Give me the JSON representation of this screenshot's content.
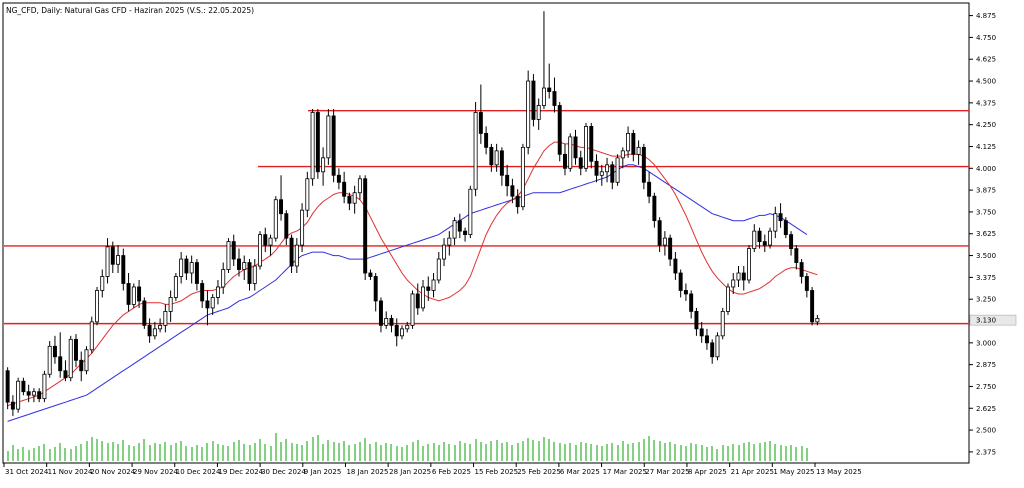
{
  "chart_data": {
    "type": "candlestick",
    "title": "NG_CFD, Daily: Natural Gas CFD - Haziran 2025 (V.S.: 22.05.2025)",
    "y_ticks": [
      "4.875",
      "4.750",
      "4.625",
      "4.500",
      "4.375",
      "4.250",
      "4.125",
      "4.000",
      "3.875",
      "3.750",
      "3.625",
      "3.500",
      "3.375",
      "3.250",
      "3.125",
      "3.000",
      "2.875",
      "2.750",
      "2.625",
      "2.500",
      "2.375"
    ],
    "y_tick_values": [
      4.875,
      4.75,
      4.625,
      4.5,
      4.375,
      4.25,
      4.125,
      4.0,
      3.875,
      3.75,
      3.625,
      3.5,
      3.375,
      3.25,
      3.125,
      3.0,
      2.875,
      2.75,
      2.625,
      2.5,
      2.375
    ],
    "x_ticks": [
      "31 Oct 2024",
      "11 Nov 2024",
      "20 Nov 2024",
      "29 Nov 2024",
      "10 Dec 2024",
      "19 Dec 2024",
      "30 Dec 2024",
      "9 Jan 2025",
      "18 Jan 2025",
      "28 Jan 2025",
      "6 Feb 2025",
      "15 Feb 2025",
      "25 Feb 2025",
      "6 Mar 2025",
      "17 Mar 2025",
      "27 Mar 2025",
      "8 Apr 2025",
      "21 Apr 2025",
      "1 May 2025",
      "13 May 2025"
    ],
    "ylim": [
      2.34,
      4.93
    ],
    "current_price": "3.130",
    "current_value": 3.13,
    "horizontal_levels": [
      4.33,
      4.01,
      3.555,
      3.11
    ],
    "colors": {
      "up": "#ffffff",
      "down": "#000000",
      "outline": "#000000",
      "level": "#e02020",
      "ma_short": "#e03030",
      "ma_long": "#3030e0",
      "volume": "#30b030",
      "axis": "#000000",
      "text": "#000000"
    },
    "candles": [
      [
        2.84,
        2.86,
        2.62,
        2.66
      ],
      [
        2.66,
        2.7,
        2.58,
        2.62
      ],
      [
        2.62,
        2.8,
        2.6,
        2.78
      ],
      [
        2.78,
        2.8,
        2.7,
        2.72
      ],
      [
        2.72,
        2.76,
        2.66,
        2.7
      ],
      [
        2.7,
        2.74,
        2.66,
        2.72
      ],
      [
        2.72,
        2.74,
        2.66,
        2.68
      ],
      [
        2.68,
        2.84,
        2.66,
        2.82
      ],
      [
        2.82,
        3.01,
        2.8,
        2.98
      ],
      [
        2.98,
        3.04,
        2.88,
        2.92
      ],
      [
        2.92,
        3.06,
        2.8,
        2.84
      ],
      [
        2.84,
        2.9,
        2.78,
        2.8
      ],
      [
        2.8,
        3.04,
        2.78,
        3.02
      ],
      [
        3.02,
        3.05,
        2.86,
        2.9
      ],
      [
        2.9,
        2.95,
        2.78,
        2.84
      ],
      [
        2.84,
        2.98,
        2.82,
        2.96
      ],
      [
        2.96,
        3.15,
        2.94,
        3.12
      ],
      [
        3.12,
        3.32,
        3.1,
        3.3
      ],
      [
        3.3,
        3.42,
        3.26,
        3.38
      ],
      [
        3.38,
        3.6,
        3.34,
        3.55
      ],
      [
        3.55,
        3.58,
        3.4,
        3.45
      ],
      [
        3.45,
        3.56,
        3.4,
        3.5
      ],
      [
        3.5,
        3.54,
        3.3,
        3.34
      ],
      [
        3.34,
        3.4,
        3.18,
        3.22
      ],
      [
        3.22,
        3.34,
        3.2,
        3.32
      ],
      [
        3.32,
        3.36,
        3.2,
        3.24
      ],
      [
        3.24,
        3.26,
        3.08,
        3.1
      ],
      [
        3.1,
        3.14,
        3.0,
        3.04
      ],
      [
        3.04,
        3.12,
        3.02,
        3.08
      ],
      [
        3.08,
        3.14,
        3.06,
        3.1
      ],
      [
        3.1,
        3.22,
        3.06,
        3.18
      ],
      [
        3.18,
        3.3,
        3.12,
        3.26
      ],
      [
        3.26,
        3.4,
        3.24,
        3.38
      ],
      [
        3.38,
        3.52,
        3.34,
        3.48
      ],
      [
        3.48,
        3.5,
        3.36,
        3.4
      ],
      [
        3.4,
        3.5,
        3.34,
        3.46
      ],
      [
        3.46,
        3.48,
        3.3,
        3.34
      ],
      [
        3.34,
        3.36,
        3.2,
        3.24
      ],
      [
        3.24,
        3.3,
        3.1,
        3.2
      ],
      [
        3.2,
        3.28,
        3.16,
        3.26
      ],
      [
        3.26,
        3.36,
        3.22,
        3.32
      ],
      [
        3.32,
        3.46,
        3.28,
        3.42
      ],
      [
        3.42,
        3.6,
        3.4,
        3.58
      ],
      [
        3.58,
        3.62,
        3.44,
        3.48
      ],
      [
        3.48,
        3.54,
        3.38,
        3.42
      ],
      [
        3.42,
        3.5,
        3.36,
        3.46
      ],
      [
        3.46,
        3.48,
        3.3,
        3.34
      ],
      [
        3.34,
        3.48,
        3.3,
        3.44
      ],
      [
        3.44,
        3.64,
        3.42,
        3.62
      ],
      [
        3.62,
        3.66,
        3.52,
        3.56
      ],
      [
        3.56,
        3.62,
        3.5,
        3.6
      ],
      [
        3.6,
        3.84,
        3.58,
        3.82
      ],
      [
        3.82,
        3.96,
        3.7,
        3.74
      ],
      [
        3.74,
        3.76,
        3.56,
        3.6
      ],
      [
        3.6,
        3.62,
        3.4,
        3.44
      ],
      [
        3.44,
        3.6,
        3.4,
        3.56
      ],
      [
        3.56,
        3.8,
        3.52,
        3.76
      ],
      [
        3.76,
        3.98,
        3.72,
        3.94
      ],
      [
        3.94,
        4.34,
        3.9,
        4.32
      ],
      [
        4.32,
        4.34,
        3.94,
        3.98
      ],
      [
        3.98,
        4.12,
        3.9,
        4.06
      ],
      [
        4.06,
        4.34,
        4.02,
        4.3
      ],
      [
        4.3,
        4.34,
        3.92,
        3.96
      ],
      [
        3.96,
        4.0,
        3.88,
        3.92
      ],
      [
        3.92,
        3.98,
        3.8,
        3.84
      ],
      [
        3.84,
        3.86,
        3.76,
        3.8
      ],
      [
        3.8,
        3.9,
        3.74,
        3.86
      ],
      [
        3.86,
        3.96,
        3.82,
        3.94
      ],
      [
        3.94,
        3.96,
        3.36,
        3.4
      ],
      [
        3.4,
        3.42,
        3.36,
        3.38
      ],
      [
        3.38,
        3.4,
        3.18,
        3.24
      ],
      [
        3.24,
        3.26,
        3.06,
        3.1
      ],
      [
        3.1,
        3.18,
        3.08,
        3.14
      ],
      [
        3.14,
        3.16,
        3.06,
        3.1
      ],
      [
        3.1,
        3.14,
        2.98,
        3.04
      ],
      [
        3.04,
        3.1,
        3.02,
        3.08
      ],
      [
        3.08,
        3.12,
        3.06,
        3.1
      ],
      [
        3.1,
        3.3,
        3.08,
        3.28
      ],
      [
        3.28,
        3.34,
        3.16,
        3.2
      ],
      [
        3.2,
        3.36,
        3.18,
        3.32
      ],
      [
        3.32,
        3.38,
        3.24,
        3.3
      ],
      [
        3.3,
        3.4,
        3.26,
        3.36
      ],
      [
        3.36,
        3.52,
        3.34,
        3.48
      ],
      [
        3.48,
        3.6,
        3.44,
        3.56
      ],
      [
        3.56,
        3.64,
        3.5,
        3.6
      ],
      [
        3.6,
        3.72,
        3.56,
        3.7
      ],
      [
        3.7,
        3.74,
        3.6,
        3.64
      ],
      [
        3.64,
        3.66,
        3.58,
        3.62
      ],
      [
        3.62,
        3.9,
        3.6,
        3.88
      ],
      [
        3.88,
        4.38,
        3.84,
        4.32
      ],
      [
        4.32,
        4.48,
        4.14,
        4.2
      ],
      [
        4.2,
        4.24,
        4.08,
        4.12
      ],
      [
        4.12,
        4.14,
        3.98,
        4.02
      ],
      [
        4.02,
        4.14,
        3.98,
        4.1
      ],
      [
        4.1,
        4.12,
        3.9,
        3.96
      ],
      [
        3.96,
        4.02,
        3.84,
        3.9
      ],
      [
        3.9,
        3.94,
        3.8,
        3.84
      ],
      [
        3.84,
        3.88,
        3.74,
        3.78
      ],
      [
        3.78,
        4.14,
        3.76,
        4.12
      ],
      [
        4.12,
        4.56,
        4.08,
        4.5
      ],
      [
        4.5,
        4.54,
        4.24,
        4.28
      ],
      [
        4.28,
        4.4,
        4.22,
        4.36
      ],
      [
        4.36,
        4.9,
        4.34,
        4.46
      ],
      [
        4.46,
        4.6,
        4.4,
        4.44
      ],
      [
        4.44,
        4.52,
        4.32,
        4.36
      ],
      [
        4.36,
        4.38,
        4.04,
        4.08
      ],
      [
        4.08,
        4.14,
        3.96,
        4.0
      ],
      [
        4.0,
        4.2,
        3.98,
        4.18
      ],
      [
        4.18,
        4.22,
        4.02,
        4.06
      ],
      [
        4.06,
        4.1,
        3.96,
        4.0
      ],
      [
        4.0,
        4.26,
        3.98,
        4.24
      ],
      [
        4.24,
        4.26,
        4.0,
        4.04
      ],
      [
        4.04,
        4.08,
        3.92,
        3.96
      ],
      [
        3.96,
        4.02,
        3.9,
        3.98
      ],
      [
        3.98,
        4.06,
        3.92,
        4.02
      ],
      [
        4.02,
        4.04,
        3.88,
        3.92
      ],
      [
        3.92,
        4.08,
        3.9,
        4.06
      ],
      [
        4.06,
        4.12,
        4.0,
        4.1
      ],
      [
        4.1,
        4.24,
        4.06,
        4.2
      ],
      [
        4.2,
        4.22,
        4.04,
        4.08
      ],
      [
        4.08,
        4.16,
        4.02,
        4.12
      ],
      [
        4.12,
        4.14,
        3.88,
        3.92
      ],
      [
        3.92,
        3.98,
        3.8,
        3.84
      ],
      [
        3.84,
        3.86,
        3.66,
        3.7
      ],
      [
        3.7,
        3.72,
        3.52,
        3.56
      ],
      [
        3.56,
        3.64,
        3.5,
        3.6
      ],
      [
        3.6,
        3.62,
        3.44,
        3.48
      ],
      [
        3.48,
        3.52,
        3.36,
        3.4
      ],
      [
        3.4,
        3.42,
        3.26,
        3.3
      ],
      [
        3.3,
        3.34,
        3.24,
        3.28
      ],
      [
        3.28,
        3.3,
        3.14,
        3.18
      ],
      [
        3.18,
        3.2,
        3.04,
        3.08
      ],
      [
        3.08,
        3.12,
        3.0,
        3.04
      ],
      [
        3.04,
        3.08,
        2.96,
        3.0
      ],
      [
        3.0,
        3.02,
        2.88,
        2.92
      ],
      [
        2.92,
        3.06,
        2.9,
        3.04
      ],
      [
        3.04,
        3.2,
        3.02,
        3.18
      ],
      [
        3.18,
        3.34,
        3.16,
        3.32
      ],
      [
        3.32,
        3.4,
        3.28,
        3.36
      ],
      [
        3.36,
        3.44,
        3.32,
        3.4
      ],
      [
        3.4,
        3.44,
        3.3,
        3.36
      ],
      [
        3.36,
        3.56,
        3.34,
        3.54
      ],
      [
        3.54,
        3.68,
        3.52,
        3.64
      ],
      [
        3.64,
        3.66,
        3.54,
        3.58
      ],
      [
        3.58,
        3.62,
        3.52,
        3.56
      ],
      [
        3.56,
        3.66,
        3.54,
        3.64
      ],
      [
        3.64,
        3.78,
        3.6,
        3.74
      ],
      [
        3.74,
        3.8,
        3.66,
        3.7
      ],
      [
        3.7,
        3.72,
        3.6,
        3.62
      ],
      [
        3.62,
        3.64,
        3.5,
        3.54
      ],
      [
        3.54,
        3.56,
        3.42,
        3.46
      ],
      [
        3.46,
        3.48,
        3.34,
        3.38
      ],
      [
        3.38,
        3.4,
        3.26,
        3.3
      ],
      [
        3.3,
        3.32,
        3.1,
        3.12
      ],
      [
        3.12,
        3.16,
        3.1,
        3.14
      ]
    ],
    "ma_short": [
      2.64,
      2.65,
      2.66,
      2.67,
      2.68,
      2.69,
      2.7,
      2.72,
      2.74,
      2.76,
      2.78,
      2.8,
      2.82,
      2.85,
      2.88,
      2.91,
      2.94,
      2.98,
      3.02,
      3.06,
      3.1,
      3.13,
      3.16,
      3.18,
      3.2,
      3.22,
      3.23,
      3.23,
      3.23,
      3.23,
      3.22,
      3.22,
      3.23,
      3.24,
      3.26,
      3.28,
      3.29,
      3.3,
      3.3,
      3.3,
      3.31,
      3.32,
      3.35,
      3.38,
      3.4,
      3.42,
      3.43,
      3.44,
      3.46,
      3.48,
      3.5,
      3.53,
      3.57,
      3.61,
      3.63,
      3.64,
      3.66,
      3.69,
      3.74,
      3.78,
      3.81,
      3.83,
      3.85,
      3.86,
      3.86,
      3.85,
      3.84,
      3.82,
      3.78,
      3.72,
      3.66,
      3.6,
      3.55,
      3.5,
      3.45,
      3.4,
      3.36,
      3.33,
      3.3,
      3.28,
      3.26,
      3.25,
      3.24,
      3.25,
      3.26,
      3.28,
      3.3,
      3.33,
      3.38,
      3.46,
      3.54,
      3.62,
      3.68,
      3.73,
      3.77,
      3.8,
      3.82,
      3.84,
      3.88,
      3.94,
      4.0,
      4.05,
      4.1,
      4.13,
      4.15,
      4.15,
      4.14,
      4.14,
      4.13,
      4.12,
      4.12,
      4.11,
      4.1,
      4.09,
      4.08,
      4.07,
      4.07,
      4.07,
      4.08,
      4.08,
      4.08,
      4.07,
      4.05,
      4.02,
      3.98,
      3.94,
      3.9,
      3.85,
      3.79,
      3.73,
      3.66,
      3.59,
      3.52,
      3.46,
      3.41,
      3.37,
      3.34,
      3.31,
      3.29,
      3.28,
      3.28,
      3.29,
      3.3,
      3.31,
      3.33,
      3.35,
      3.38,
      3.4,
      3.42,
      3.43,
      3.43,
      3.42,
      3.41,
      3.4,
      3.39
    ],
    "ma_long": [
      2.55,
      2.56,
      2.57,
      2.58,
      2.59,
      2.6,
      2.61,
      2.62,
      2.63,
      2.64,
      2.65,
      2.66,
      2.67,
      2.68,
      2.69,
      2.7,
      2.72,
      2.74,
      2.76,
      2.78,
      2.8,
      2.82,
      2.84,
      2.86,
      2.88,
      2.9,
      2.92,
      2.94,
      2.96,
      2.98,
      3.0,
      3.02,
      3.04,
      3.06,
      3.08,
      3.1,
      3.12,
      3.14,
      3.16,
      3.17,
      3.18,
      3.19,
      3.2,
      3.22,
      3.24,
      3.25,
      3.26,
      3.28,
      3.3,
      3.32,
      3.34,
      3.36,
      3.39,
      3.42,
      3.45,
      3.48,
      3.5,
      3.51,
      3.52,
      3.52,
      3.52,
      3.51,
      3.5,
      3.5,
      3.49,
      3.48,
      3.48,
      3.48,
      3.48,
      3.49,
      3.5,
      3.51,
      3.52,
      3.53,
      3.54,
      3.55,
      3.56,
      3.57,
      3.58,
      3.59,
      3.6,
      3.61,
      3.62,
      3.64,
      3.66,
      3.68,
      3.7,
      3.72,
      3.74,
      3.75,
      3.76,
      3.77,
      3.78,
      3.79,
      3.8,
      3.81,
      3.82,
      3.83,
      3.84,
      3.85,
      3.86,
      3.86,
      3.86,
      3.86,
      3.86,
      3.86,
      3.87,
      3.88,
      3.89,
      3.9,
      3.91,
      3.92,
      3.93,
      3.94,
      3.95,
      3.97,
      3.99,
      4.01,
      4.02,
      4.02,
      4.01,
      4.0,
      3.98,
      3.96,
      3.94,
      3.92,
      3.9,
      3.88,
      3.86,
      3.84,
      3.82,
      3.8,
      3.78,
      3.76,
      3.74,
      3.73,
      3.72,
      3.71,
      3.7,
      3.7,
      3.7,
      3.71,
      3.72,
      3.73,
      3.73,
      3.74,
      3.73,
      3.72,
      3.7,
      3.68,
      3.66,
      3.64,
      3.62
    ],
    "volume": [
      10,
      16,
      12,
      14,
      11,
      13,
      15,
      17,
      12,
      14,
      18,
      13,
      12,
      15,
      17,
      20,
      24,
      22,
      20,
      18,
      19,
      17,
      21,
      16,
      15,
      18,
      22,
      16,
      18,
      17,
      19,
      16,
      18,
      20,
      15,
      14,
      16,
      14,
      18,
      20,
      17,
      16,
      15,
      19,
      21,
      17,
      16,
      18,
      22,
      17,
      15,
      28,
      19,
      22,
      18,
      17,
      16,
      20,
      24,
      26,
      17,
      21,
      19,
      18,
      20,
      16,
      17,
      19,
      23,
      17,
      19,
      16,
      18,
      17,
      15,
      14,
      16,
      19,
      21,
      15,
      17,
      18,
      16,
      19,
      17,
      16,
      20,
      18,
      17,
      22,
      19,
      17,
      20,
      21,
      18,
      19,
      16,
      18,
      20,
      23,
      21,
      20,
      24,
      22,
      19,
      18,
      17,
      18,
      16,
      19,
      18,
      17,
      16,
      15,
      17,
      18,
      16,
      20,
      17,
      18,
      19,
      22,
      25,
      21,
      20,
      18,
      19,
      17,
      16,
      15,
      18,
      17,
      16,
      14,
      15,
      12,
      16,
      15,
      17,
      16,
      18,
      19,
      17,
      18,
      19,
      20,
      17,
      16,
      15,
      16,
      14,
      15,
      13
    ]
  }
}
